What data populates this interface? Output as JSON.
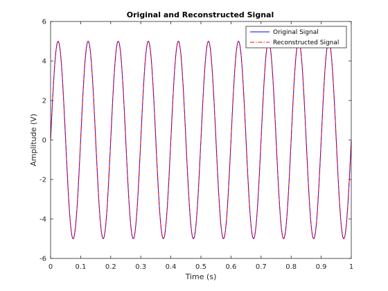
{
  "chart_data": {
    "type": "line",
    "title": "Original and Reconstructed Signal",
    "xlabel": "Time (s)",
    "ylabel": "Amplitude (V)",
    "xlim": [
      0,
      1
    ],
    "ylim": [
      -6,
      6
    ],
    "x_ticks": [
      "0",
      "0.1",
      "0.2",
      "0.3",
      "0.4",
      "0.5",
      "0.6",
      "0.7",
      "0.8",
      "0.9",
      "1"
    ],
    "y_ticks": [
      "-6",
      "-4",
      "-2",
      "0",
      "2",
      "4",
      "6"
    ],
    "grid": false,
    "legend_position": "top-right",
    "series": [
      {
        "name": "Original Signal",
        "color": "#0000ff",
        "line_style": "solid",
        "function": "sine",
        "amplitude": 5,
        "frequency_hz": 10,
        "phase_rad": 0,
        "x_start": 0,
        "x_end": 1
      },
      {
        "name": "Reconstructed Signal",
        "color": "#ff0000",
        "line_style": "dash-dot",
        "function": "sine",
        "amplitude": 5,
        "frequency_hz": 10,
        "phase_rad": 0,
        "x_start": 0,
        "x_end": 1
      }
    ]
  }
}
